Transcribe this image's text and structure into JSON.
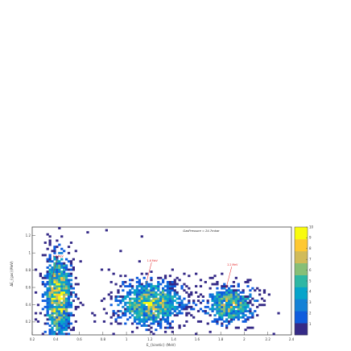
{
  "chart_data": {
    "type": "heatmap",
    "title": "GasPressure = 24.7mbar",
    "xlabel": "E_{kinetic} (MeV)",
    "ylabel": "ΔE_{gas}(MeV)",
    "xlim": [
      0.2,
      2.4
    ],
    "ylim": [
      0.05,
      1.3
    ],
    "x_ticks": [
      "0.2",
      "0.4",
      "0.6",
      "0.8",
      "1",
      "1.2",
      "1.4",
      "1.6",
      "1.8",
      "2",
      "2.2",
      "2.4"
    ],
    "y_ticks": [
      "0.2",
      "0.4",
      "0.6",
      "0.8",
      "1",
      "1.2"
    ],
    "colorbar": {
      "min": 0,
      "max": 10,
      "ticks": [
        "1",
        "2",
        "3",
        "4",
        "5",
        "6",
        "7",
        "8",
        "9",
        "10"
      ]
    },
    "palette": [
      "#352a87",
      "#0f5cdd",
      "#1481d6",
      "#06a4ca",
      "#2eb7a4",
      "#87bf77",
      "#d1bb59",
      "#fec832",
      "#f9fb0e"
    ],
    "clusters": [
      {
        "x_center": 0.42,
        "y_center": 0.5,
        "x_sigma": 0.07,
        "y_sigma": 0.3,
        "peak_count": 10
      },
      {
        "x_center": 1.2,
        "y_center": 0.42,
        "x_sigma": 0.17,
        "y_sigma": 0.16,
        "peak_count": 8
      },
      {
        "x_center": 1.88,
        "y_center": 0.4,
        "x_sigma": 0.13,
        "y_sigma": 0.14,
        "peak_count": 7
      }
    ],
    "annotations": [
      {
        "text": "0.8 MeV",
        "x": 0.42,
        "y": 0.95
      },
      {
        "text": "1.6 MeV",
        "x": 1.22,
        "y": 0.9
      },
      {
        "text": "2.2 MeV",
        "x": 1.9,
        "y": 0.85
      }
    ]
  }
}
